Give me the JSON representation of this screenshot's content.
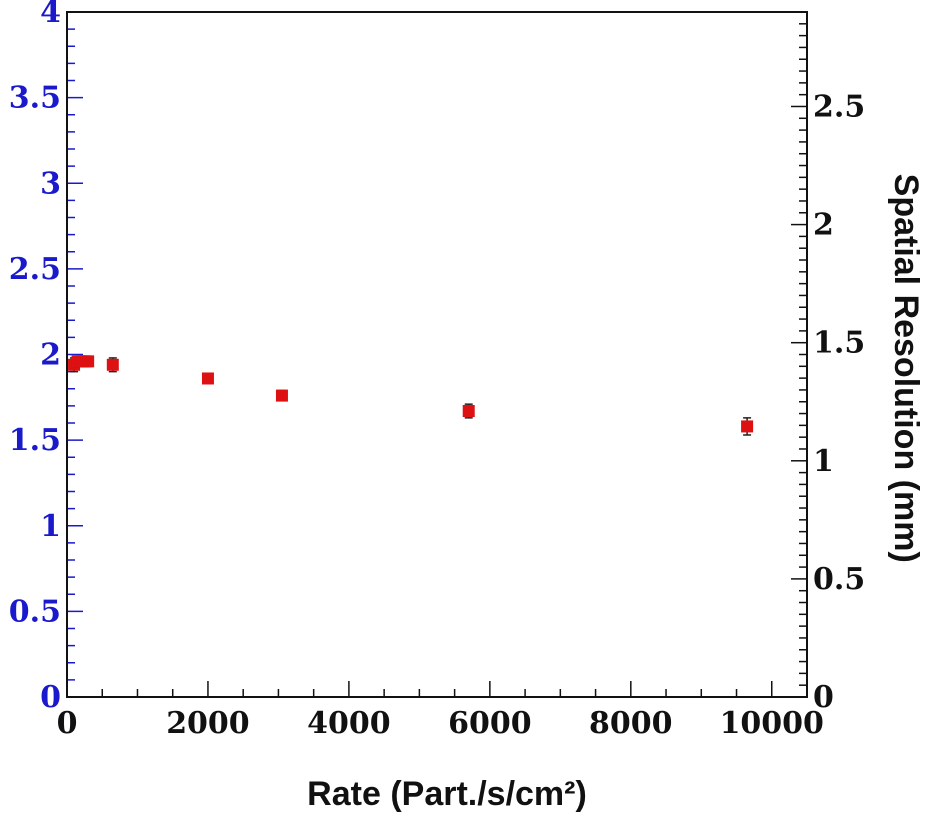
{
  "chart_data": {
    "type": "scatter",
    "title": "",
    "xlabel": "Rate (Part./s/cm²)",
    "ylabel_left": "",
    "ylabel_right": "Spatial Resolution (mm)",
    "xlim": [
      0,
      10500
    ],
    "ylim_left": [
      0,
      4
    ],
    "ylim_right": [
      0,
      2.9
    ],
    "x_ticks": [
      "0",
      "2000",
      "4000",
      "6000",
      "8000",
      "10000"
    ],
    "y_left_ticks": [
      "0",
      "0.5",
      "1",
      "1.5",
      "2",
      "2.5",
      "3",
      "3.5",
      "4"
    ],
    "y_right_ticks": [
      "0",
      "0.5",
      "1",
      "1.5",
      "2",
      "2.5"
    ],
    "grid": false,
    "colors": {
      "marker": "#dd1111",
      "left_axis": "#1a1acc",
      "right_axis": "#111111",
      "frame": "#111111"
    },
    "series": [
      {
        "axis": "left",
        "x": [
          100,
          150,
          200,
          250,
          300,
          650,
          2000,
          3050,
          5700,
          9650
        ],
        "y": [
          1.94,
          1.96,
          1.96,
          1.96,
          1.96,
          1.94,
          1.86,
          1.76,
          1.67,
          1.58
        ],
        "yerr": [
          0.04,
          0.03,
          0.03,
          0.03,
          0.03,
          0.04,
          0.03,
          0.03,
          0.04,
          0.05
        ]
      }
    ]
  }
}
